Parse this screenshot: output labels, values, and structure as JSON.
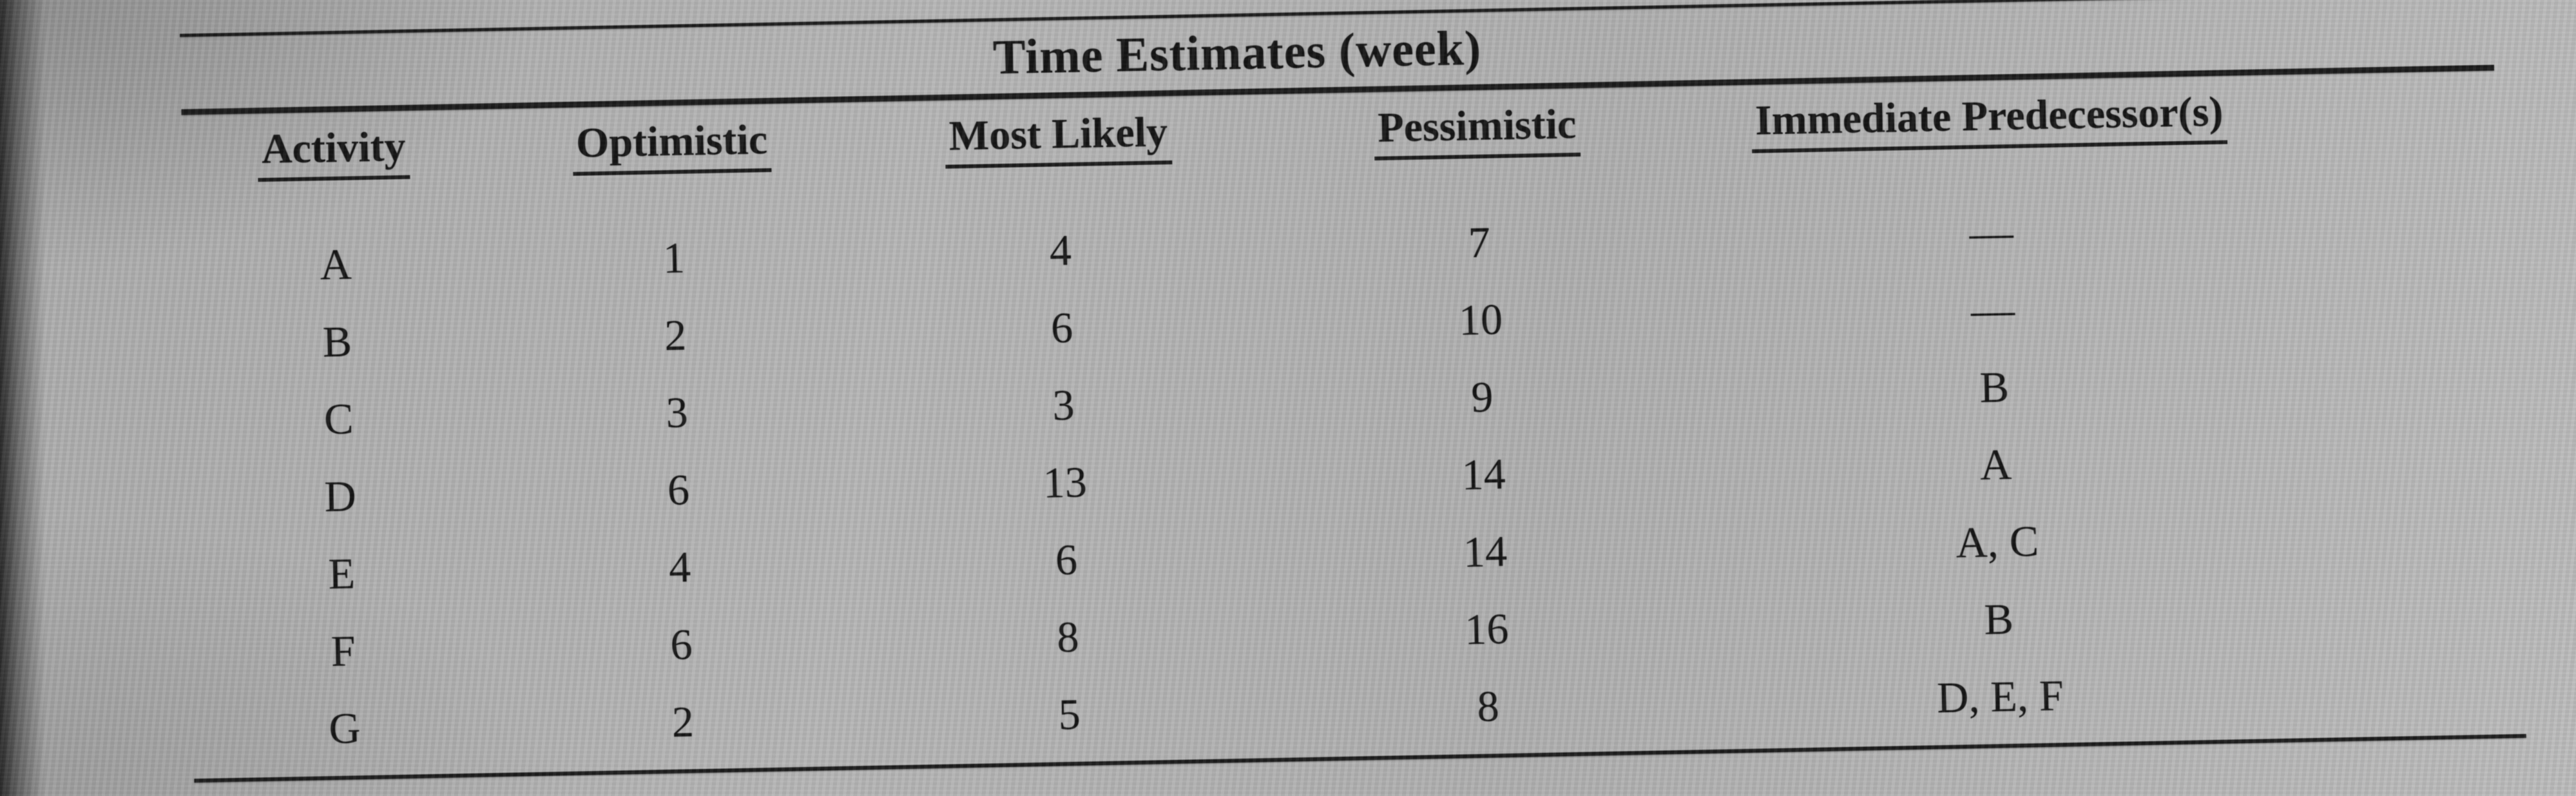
{
  "photo": {
    "background_color": "#b2b2b2",
    "ink_color": "#161616"
  },
  "table": {
    "title": "Time Estimates (week)",
    "columns": [
      "Activity",
      "Optimistic",
      "Most Likely",
      "Pessimistic",
      "Immediate Predecessor(s)"
    ],
    "rows": [
      {
        "activity": "A",
        "optimistic": "1",
        "most_likely": "4",
        "pessimistic": "7",
        "predecessors": "—"
      },
      {
        "activity": "B",
        "optimistic": "2",
        "most_likely": "6",
        "pessimistic": "10",
        "predecessors": "—"
      },
      {
        "activity": "C",
        "optimistic": "3",
        "most_likely": "3",
        "pessimistic": "9",
        "predecessors": "B"
      },
      {
        "activity": "D",
        "optimistic": "6",
        "most_likely": "13",
        "pessimistic": "14",
        "predecessors": "A"
      },
      {
        "activity": "E",
        "optimistic": "4",
        "most_likely": "6",
        "pessimistic": "14",
        "predecessors": "A, C"
      },
      {
        "activity": "F",
        "optimistic": "6",
        "most_likely": "8",
        "pessimistic": "16",
        "predecessors": "B"
      },
      {
        "activity": "G",
        "optimistic": "2",
        "most_likely": "5",
        "pessimistic": "8",
        "predecessors": "D, E, F"
      }
    ]
  }
}
